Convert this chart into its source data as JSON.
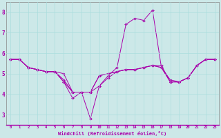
{
  "xlabel": "Windchill (Refroidissement éolien,°C)",
  "ylabel": "",
  "bg_color": "#cce8e8",
  "line_color": "#aa00aa",
  "xlim": [
    -0.5,
    23.5
  ],
  "ylim": [
    2.5,
    8.5
  ],
  "yticks": [
    3,
    4,
    5,
    6,
    7,
    8
  ],
  "xticks": [
    0,
    1,
    2,
    3,
    4,
    5,
    6,
    7,
    8,
    9,
    10,
    11,
    12,
    13,
    14,
    15,
    16,
    17,
    18,
    19,
    20,
    21,
    22,
    23
  ],
  "lines": [
    [
      5.7,
      5.7,
      5.3,
      5.2,
      5.1,
      5.1,
      4.6,
      3.8,
      4.1,
      4.1,
      4.4,
      4.9,
      5.3,
      7.4,
      7.7,
      7.6,
      8.1,
      5.3,
      4.7,
      4.6,
      4.8,
      5.4,
      5.7,
      5.7
    ],
    [
      5.7,
      5.7,
      5.3,
      5.2,
      5.1,
      5.1,
      4.6,
      4.1,
      4.1,
      2.8,
      4.4,
      4.8,
      5.1,
      5.2,
      5.2,
      5.3,
      5.4,
      5.4,
      4.6,
      4.6,
      4.8,
      5.4,
      5.7,
      5.7
    ],
    [
      5.7,
      5.7,
      5.3,
      5.2,
      5.1,
      5.1,
      4.7,
      4.1,
      4.1,
      4.1,
      4.9,
      5.0,
      5.1,
      5.2,
      5.2,
      5.3,
      5.4,
      5.3,
      4.6,
      4.6,
      4.8,
      5.4,
      5.7,
      5.7
    ],
    [
      5.7,
      5.7,
      5.3,
      5.2,
      5.1,
      5.1,
      5.0,
      4.1,
      4.1,
      4.1,
      4.9,
      5.0,
      5.1,
      5.2,
      5.2,
      5.3,
      5.4,
      5.3,
      4.6,
      4.6,
      4.8,
      5.4,
      5.7,
      5.7
    ]
  ],
  "grid_color": "#aadddd",
  "spine_color": "#888888"
}
